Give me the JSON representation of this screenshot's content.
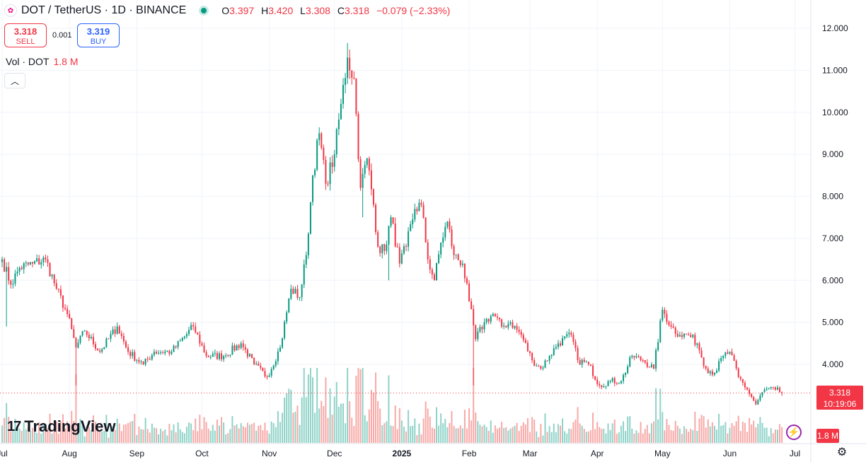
{
  "header": {
    "symbol_icon": "polkadot-icon",
    "title": "DOT / TetherUS · 1D · BINANCE",
    "ohlc": [
      {
        "k": "O",
        "v": "3.397"
      },
      {
        "k": "H",
        "v": "3.420"
      },
      {
        "k": "L",
        "v": "3.308"
      },
      {
        "k": "C",
        "v": "3.318"
      },
      {
        "k": "",
        "v": "−0.079 (−2.33%)"
      }
    ]
  },
  "trade": {
    "sell_price": "3.318",
    "sell_label": "SELL",
    "spread": "0.001",
    "buy_price": "3.319",
    "buy_label": "BUY"
  },
  "volume_legend": {
    "label": "Vol · DOT",
    "value": "1.8 M"
  },
  "price_tag": {
    "price": "3.318",
    "countdown": "10:19:06"
  },
  "volume_tag": "1.8 M",
  "brand": {
    "mark": "17",
    "name": "TradingView"
  },
  "colors": {
    "up": "#089981",
    "down": "#f23645",
    "up_vol": "#8fd3c8",
    "down_vol": "#f7a9a7"
  },
  "chart_data": {
    "type": "candlestick",
    "ylim": [
      3.0,
      12.3
    ],
    "y_ticks": [
      "12.000",
      "11.000",
      "10.000",
      "9.000",
      "8.000",
      "7.000",
      "6.000",
      "5.000",
      "4.000"
    ],
    "x_ticks": [
      {
        "label": "Jul",
        "day": 0
      },
      {
        "label": "Aug",
        "day": 31
      },
      {
        "label": "Sep",
        "day": 62
      },
      {
        "label": "Oct",
        "day": 92
      },
      {
        "label": "Nov",
        "day": 123
      },
      {
        "label": "Dec",
        "day": 153
      },
      {
        "label": "2025",
        "day": 184
      },
      {
        "label": "Feb",
        "day": 215
      },
      {
        "label": "Mar",
        "day": 243
      },
      {
        "label": "Apr",
        "day": 274
      },
      {
        "label": "May",
        "day": 304
      },
      {
        "label": "Jun",
        "day": 335
      },
      {
        "label": "Jul",
        "day": 365
      }
    ],
    "last_close": 3.318,
    "close_anchors": [
      [
        0,
        6.5
      ],
      [
        4,
        5.9
      ],
      [
        8,
        6.3
      ],
      [
        14,
        6.4
      ],
      [
        20,
        6.5
      ],
      [
        25,
        5.8
      ],
      [
        30,
        5.2
      ],
      [
        34,
        4.4
      ],
      [
        38,
        4.8
      ],
      [
        45,
        4.3
      ],
      [
        53,
        4.9
      ],
      [
        58,
        4.3
      ],
      [
        65,
        4.0
      ],
      [
        70,
        4.3
      ],
      [
        78,
        4.3
      ],
      [
        88,
        4.9
      ],
      [
        94,
        4.2
      ],
      [
        102,
        4.2
      ],
      [
        110,
        4.5
      ],
      [
        116,
        4.0
      ],
      [
        122,
        3.7
      ],
      [
        128,
        4.4
      ],
      [
        133,
        5.8
      ],
      [
        137,
        5.6
      ],
      [
        140,
        6.6
      ],
      [
        143,
        8.5
      ],
      [
        146,
        9.5
      ],
      [
        149,
        8.3
      ],
      [
        153,
        9.0
      ],
      [
        156,
        10.2
      ],
      [
        159,
        11.3
      ],
      [
        162,
        10.8
      ],
      [
        165,
        8.2
      ],
      [
        168,
        8.9
      ],
      [
        171,
        7.8
      ],
      [
        173,
        6.8
      ],
      [
        176,
        6.7
      ],
      [
        179,
        7.5
      ],
      [
        183,
        6.4
      ],
      [
        186,
        6.8
      ],
      [
        190,
        7.7
      ],
      [
        193,
        7.8
      ],
      [
        196,
        6.5
      ],
      [
        199,
        6.0
      ],
      [
        202,
        6.9
      ],
      [
        205,
        7.4
      ],
      [
        208,
        6.6
      ],
      [
        212,
        6.4
      ],
      [
        215,
        5.5
      ],
      [
        218,
        4.6
      ],
      [
        222,
        5.0
      ],
      [
        226,
        5.2
      ],
      [
        230,
        4.9
      ],
      [
        234,
        5.0
      ],
      [
        239,
        4.7
      ],
      [
        244,
        4.1
      ],
      [
        248,
        3.9
      ],
      [
        252,
        4.2
      ],
      [
        256,
        4.5
      ],
      [
        262,
        4.7
      ],
      [
        265,
        4.1
      ],
      [
        270,
        4.0
      ],
      [
        275,
        3.5
      ],
      [
        280,
        3.6
      ],
      [
        285,
        3.6
      ],
      [
        290,
        4.2
      ],
      [
        295,
        4.1
      ],
      [
        300,
        3.9
      ],
      [
        304,
        5.3
      ],
      [
        308,
        4.9
      ],
      [
        312,
        4.7
      ],
      [
        316,
        4.7
      ],
      [
        320,
        4.5
      ],
      [
        324,
        3.9
      ],
      [
        328,
        3.8
      ],
      [
        332,
        4.2
      ],
      [
        335,
        4.3
      ],
      [
        339,
        3.7
      ],
      [
        343,
        3.4
      ],
      [
        347,
        3.05
      ],
      [
        351,
        3.4
      ],
      [
        356,
        3.4
      ],
      [
        359,
        3.32
      ]
    ],
    "wicks": [
      {
        "day": 2,
        "low": 4.9
      },
      {
        "day": 34,
        "low": 3.5
      },
      {
        "day": 159,
        "high": 11.65
      },
      {
        "day": 166,
        "low": 7.5
      },
      {
        "day": 178,
        "low": 6.0
      },
      {
        "day": 217,
        "low": 3.5
      }
    ],
    "volume_ylim": [
      0,
      120
    ]
  }
}
